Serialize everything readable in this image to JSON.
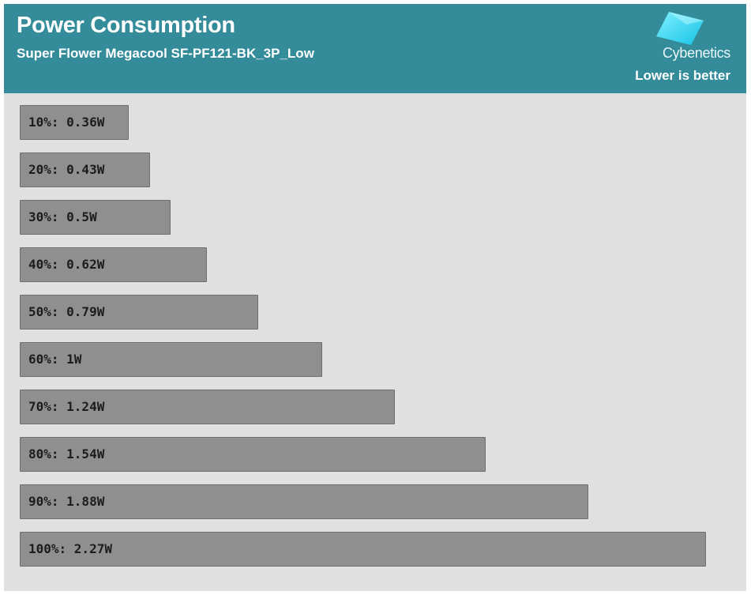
{
  "header": {
    "title": "Power Consumption",
    "subtitle": "Super Flower Megacool SF-PF121-BK_3P_Low",
    "brand": "Cybenetics",
    "note": "Lower is better"
  },
  "colors": {
    "header_bg": "#348c9a",
    "plot_bg": "#e0e0e0",
    "bar": "#8f8f8f",
    "bar_border": "#6e6e6e",
    "logo_cyan": "#29d4f0"
  },
  "chart_data": {
    "type": "bar",
    "orientation": "horizontal",
    "title": "Power Consumption",
    "subtitle": "Super Flower Megacool SF-PF121-BK_3P_Low",
    "annotation": "Lower is better",
    "unit": "W",
    "categories": [
      "10%",
      "20%",
      "30%",
      "40%",
      "50%",
      "60%",
      "70%",
      "80%",
      "90%",
      "100%"
    ],
    "values": [
      0.36,
      0.43,
      0.5,
      0.62,
      0.79,
      1,
      1.24,
      1.54,
      1.88,
      2.27
    ],
    "labels": [
      "10%: 0.36W",
      "20%: 0.43W",
      "30%: 0.5W",
      "40%: 0.62W",
      "50%: 0.79W",
      "60%: 1W",
      "70%: 1.24W",
      "80%: 1.54W",
      "90%: 1.88W",
      "100%: 2.27W"
    ],
    "xlim": [
      0,
      2.27
    ],
    "grid": false,
    "legend": false
  }
}
